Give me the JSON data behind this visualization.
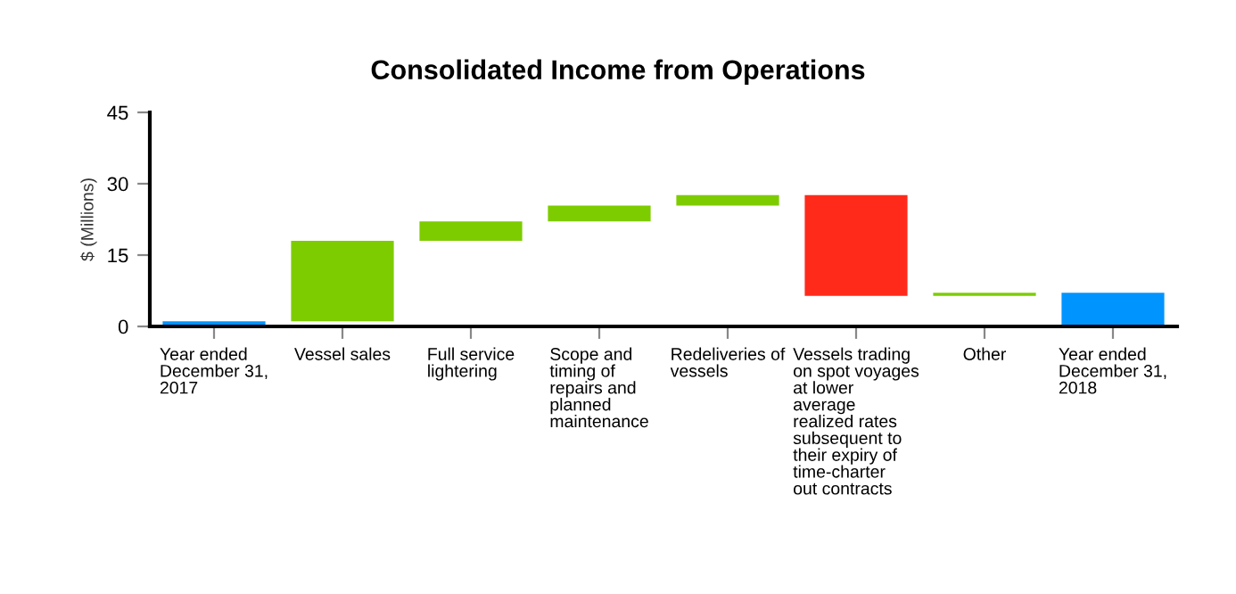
{
  "chart_data": {
    "type": "bar",
    "title": "Consolidated Income from Operations",
    "ylabel": "$ (Millions)",
    "categories": [
      "Year ended December 31, 2017",
      "Vessel sales",
      "Full service lightering",
      "Scope and timing of repairs and planned maintenance",
      "Redeliveries of vessels",
      "Vessels trading on spot voyages at lower average realized rates subsequent to their expiry of time-charter out contracts",
      "Other",
      "Year ended December 31, 2018"
    ],
    "values": [
      1.1,
      16.9,
      4.1,
      3.3,
      2.2,
      -21.2,
      0.7,
      7.1
    ],
    "base": [
      0,
      1.1,
      18.0,
      22.1,
      25.4,
      27.6,
      6.4,
      0
    ],
    "colors": [
      "#0094ff",
      "#7dcc00",
      "#7dcc00",
      "#7dcc00",
      "#7dcc00",
      "#ff2a1a",
      "#7dcc00",
      "#0094ff"
    ],
    "ylim": [
      0,
      45
    ],
    "yticks": [
      0,
      15,
      30,
      45
    ],
    "grid": false,
    "legend": false
  }
}
